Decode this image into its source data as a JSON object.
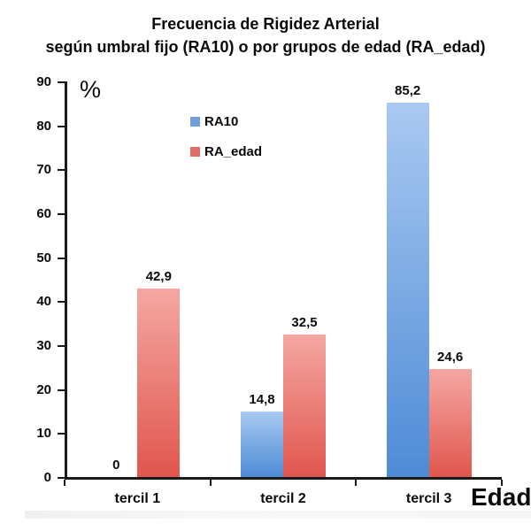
{
  "title": {
    "line1": "Frecuencia de Rigidez Arterial",
    "line2": "según umbral fijo (RA10) o por grupos de edad (RA_edad)"
  },
  "chart_data": {
    "type": "bar",
    "categories": [
      "tercil 1",
      "tercil 2",
      "tercil 3"
    ],
    "series": [
      {
        "name": "RA10",
        "values": [
          0,
          14.8,
          85.2
        ],
        "value_labels": [
          "0",
          "14,8",
          "85,2"
        ],
        "color_top": "#a9c9f1",
        "color_bottom": "#4e8bd6",
        "legend_color": "#6f9fd8"
      },
      {
        "name": "RA_edad",
        "values": [
          42.9,
          32.5,
          24.6
        ],
        "value_labels": [
          "42,9",
          "32,5",
          "24,6"
        ],
        "color_top": "#f5a7a2",
        "color_bottom": "#e0564e",
        "legend_color": "#e06d66"
      }
    ],
    "ylabel": "%",
    "xlabel": "Edad",
    "ylim": [
      0,
      90
    ],
    "ytick_step": 10,
    "yticks": [
      0,
      10,
      20,
      30,
      40,
      50,
      60,
      70,
      80,
      90
    ],
    "grid": false,
    "legend_position": "upper-left-inside",
    "axis_color": "#1a1a1a"
  }
}
